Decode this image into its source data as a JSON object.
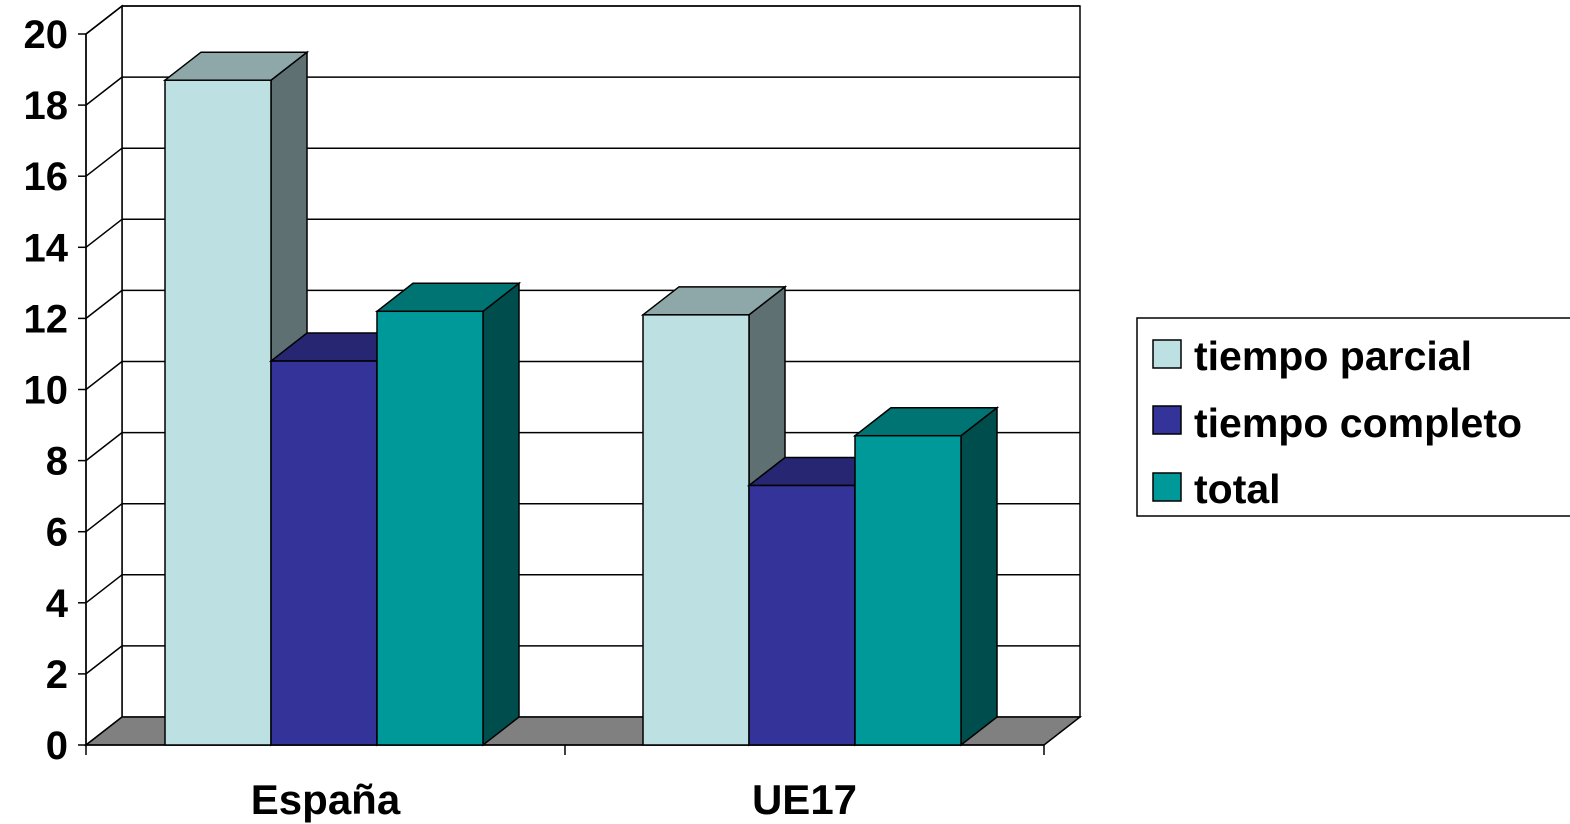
{
  "chart_data": {
    "type": "bar",
    "style": "3d-clustered-column",
    "title": "",
    "xlabel": "",
    "ylabel": "",
    "categories": [
      "España",
      "UE17"
    ],
    "series": [
      {
        "name": "tiempo parcial",
        "values": [
          18.7,
          12.1
        ],
        "color": "#bde0e3"
      },
      {
        "name": "tiempo completo",
        "values": [
          10.8,
          7.3
        ],
        "color": "#333399"
      },
      {
        "name": "total",
        "values": [
          12.2,
          8.7
        ],
        "color": "#009999"
      }
    ],
    "ylim": [
      0,
      20
    ],
    "yticks": [
      "0",
      "2",
      "4",
      "6",
      "8",
      "10",
      "12",
      "14",
      "16",
      "18",
      "20"
    ],
    "grid": true,
    "legend_position": "right",
    "colors": {
      "floor": "#808080",
      "wall": "#ffffff",
      "axis": "#000000"
    }
  }
}
